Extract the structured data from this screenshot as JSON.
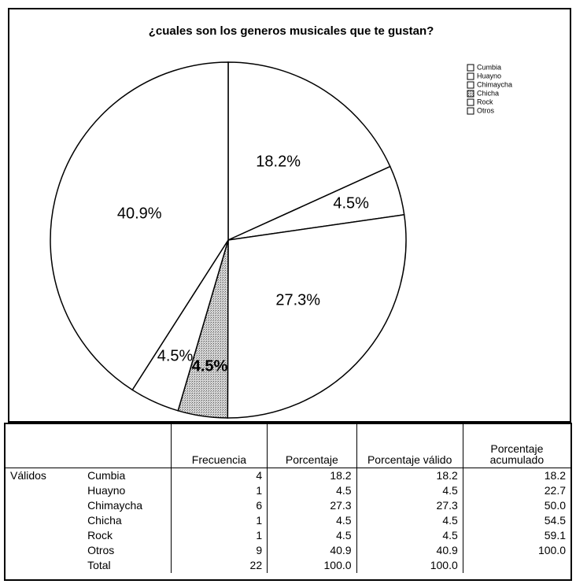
{
  "chart_data": {
    "type": "pie",
    "title": "¿cuales son los generos musicales que te gustan?",
    "categories": [
      "Cumbia",
      "Huayno",
      "Chimaycha",
      "Chicha",
      "Rock",
      "Otros"
    ],
    "values": [
      18.2,
      4.5,
      27.3,
      4.5,
      4.5,
      40.9
    ],
    "value_labels": [
      "18.2%",
      "4.5%",
      "27.3%",
      "4.5%",
      "4.5%",
      "40.9%"
    ],
    "colors": [
      "#ffffff",
      "#ffffff",
      "#ffffff",
      "#9a9a9a",
      "#ffffff",
      "#ffffff"
    ]
  },
  "table": {
    "columns": [
      "Frecuencia",
      "Porcentaje",
      "Porcentaje válido",
      "Porcentaje acumulado"
    ],
    "group": "Válidos",
    "rows": [
      {
        "label": "Cumbia",
        "cells": [
          "4",
          "18.2",
          "18.2",
          "18.2"
        ]
      },
      {
        "label": "Huayno",
        "cells": [
          "1",
          "4.5",
          "4.5",
          "22.7"
        ]
      },
      {
        "label": "Chimaycha",
        "cells": [
          "6",
          "27.3",
          "27.3",
          "50.0"
        ]
      },
      {
        "label": "Chicha",
        "cells": [
          "1",
          "4.5",
          "4.5",
          "54.5"
        ]
      },
      {
        "label": "Rock",
        "cells": [
          "1",
          "4.5",
          "4.5",
          "59.1"
        ]
      },
      {
        "label": "Otros",
        "cells": [
          "9",
          "40.9",
          "40.9",
          "100.0"
        ]
      },
      {
        "label": "Total",
        "cells": [
          "22",
          "100.0",
          "100.0"
        ]
      }
    ]
  }
}
